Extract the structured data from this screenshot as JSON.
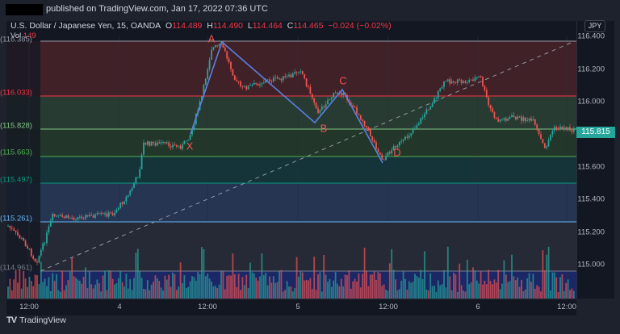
{
  "header": {
    "published_text": "published on TradingView.com, Jan 17, 2022 07:36 UTC"
  },
  "legend": {
    "symbol": "U.S. Dollar / Japanese Yen, 15, OANDA",
    "open_label": "O",
    "open": "114.489",
    "high_label": "H",
    "high": "114.490",
    "low_label": "L",
    "low": "114.464",
    "close_label": "C",
    "close": "114.465",
    "change": "−0.024 (−0.02%)",
    "vol_label": "Vol",
    "vol": "149"
  },
  "price_axis": {
    "currency": "JPY",
    "ticks": [
      "116.400",
      "116.200",
      "116.000",
      "115.600",
      "115.400",
      "115.200",
      "115.000"
    ],
    "current_price": "115.815"
  },
  "time_axis": {
    "ticks": [
      "12:00",
      "4",
      "12:00",
      "5",
      "12:00",
      "6",
      "12:00"
    ]
  },
  "fib_levels": [
    {
      "label": "(116.385)",
      "color": "#9598a1"
    },
    {
      "label": "(116.033)",
      "color": "#f23645"
    },
    {
      "label": "(115.828)",
      "color": "#81c784"
    },
    {
      "label": "(115.663)",
      "color": "#4caf50"
    },
    {
      "label": "(115.497)",
      "color": "#089981"
    },
    {
      "label": "(115.261)",
      "color": "#64b5f6"
    },
    {
      "label": "(114.961)",
      "color": "#787b86"
    }
  ],
  "pattern_points": {
    "X": "X",
    "A": "A",
    "B": "B",
    "C": "C",
    "D": "D"
  },
  "footer": {
    "brand": "TradingView",
    "mark": "TV"
  },
  "colors": {
    "up": "#26a69a",
    "down": "#ef5350",
    "pattern": "#5b7fe0",
    "background": "#131722"
  }
}
